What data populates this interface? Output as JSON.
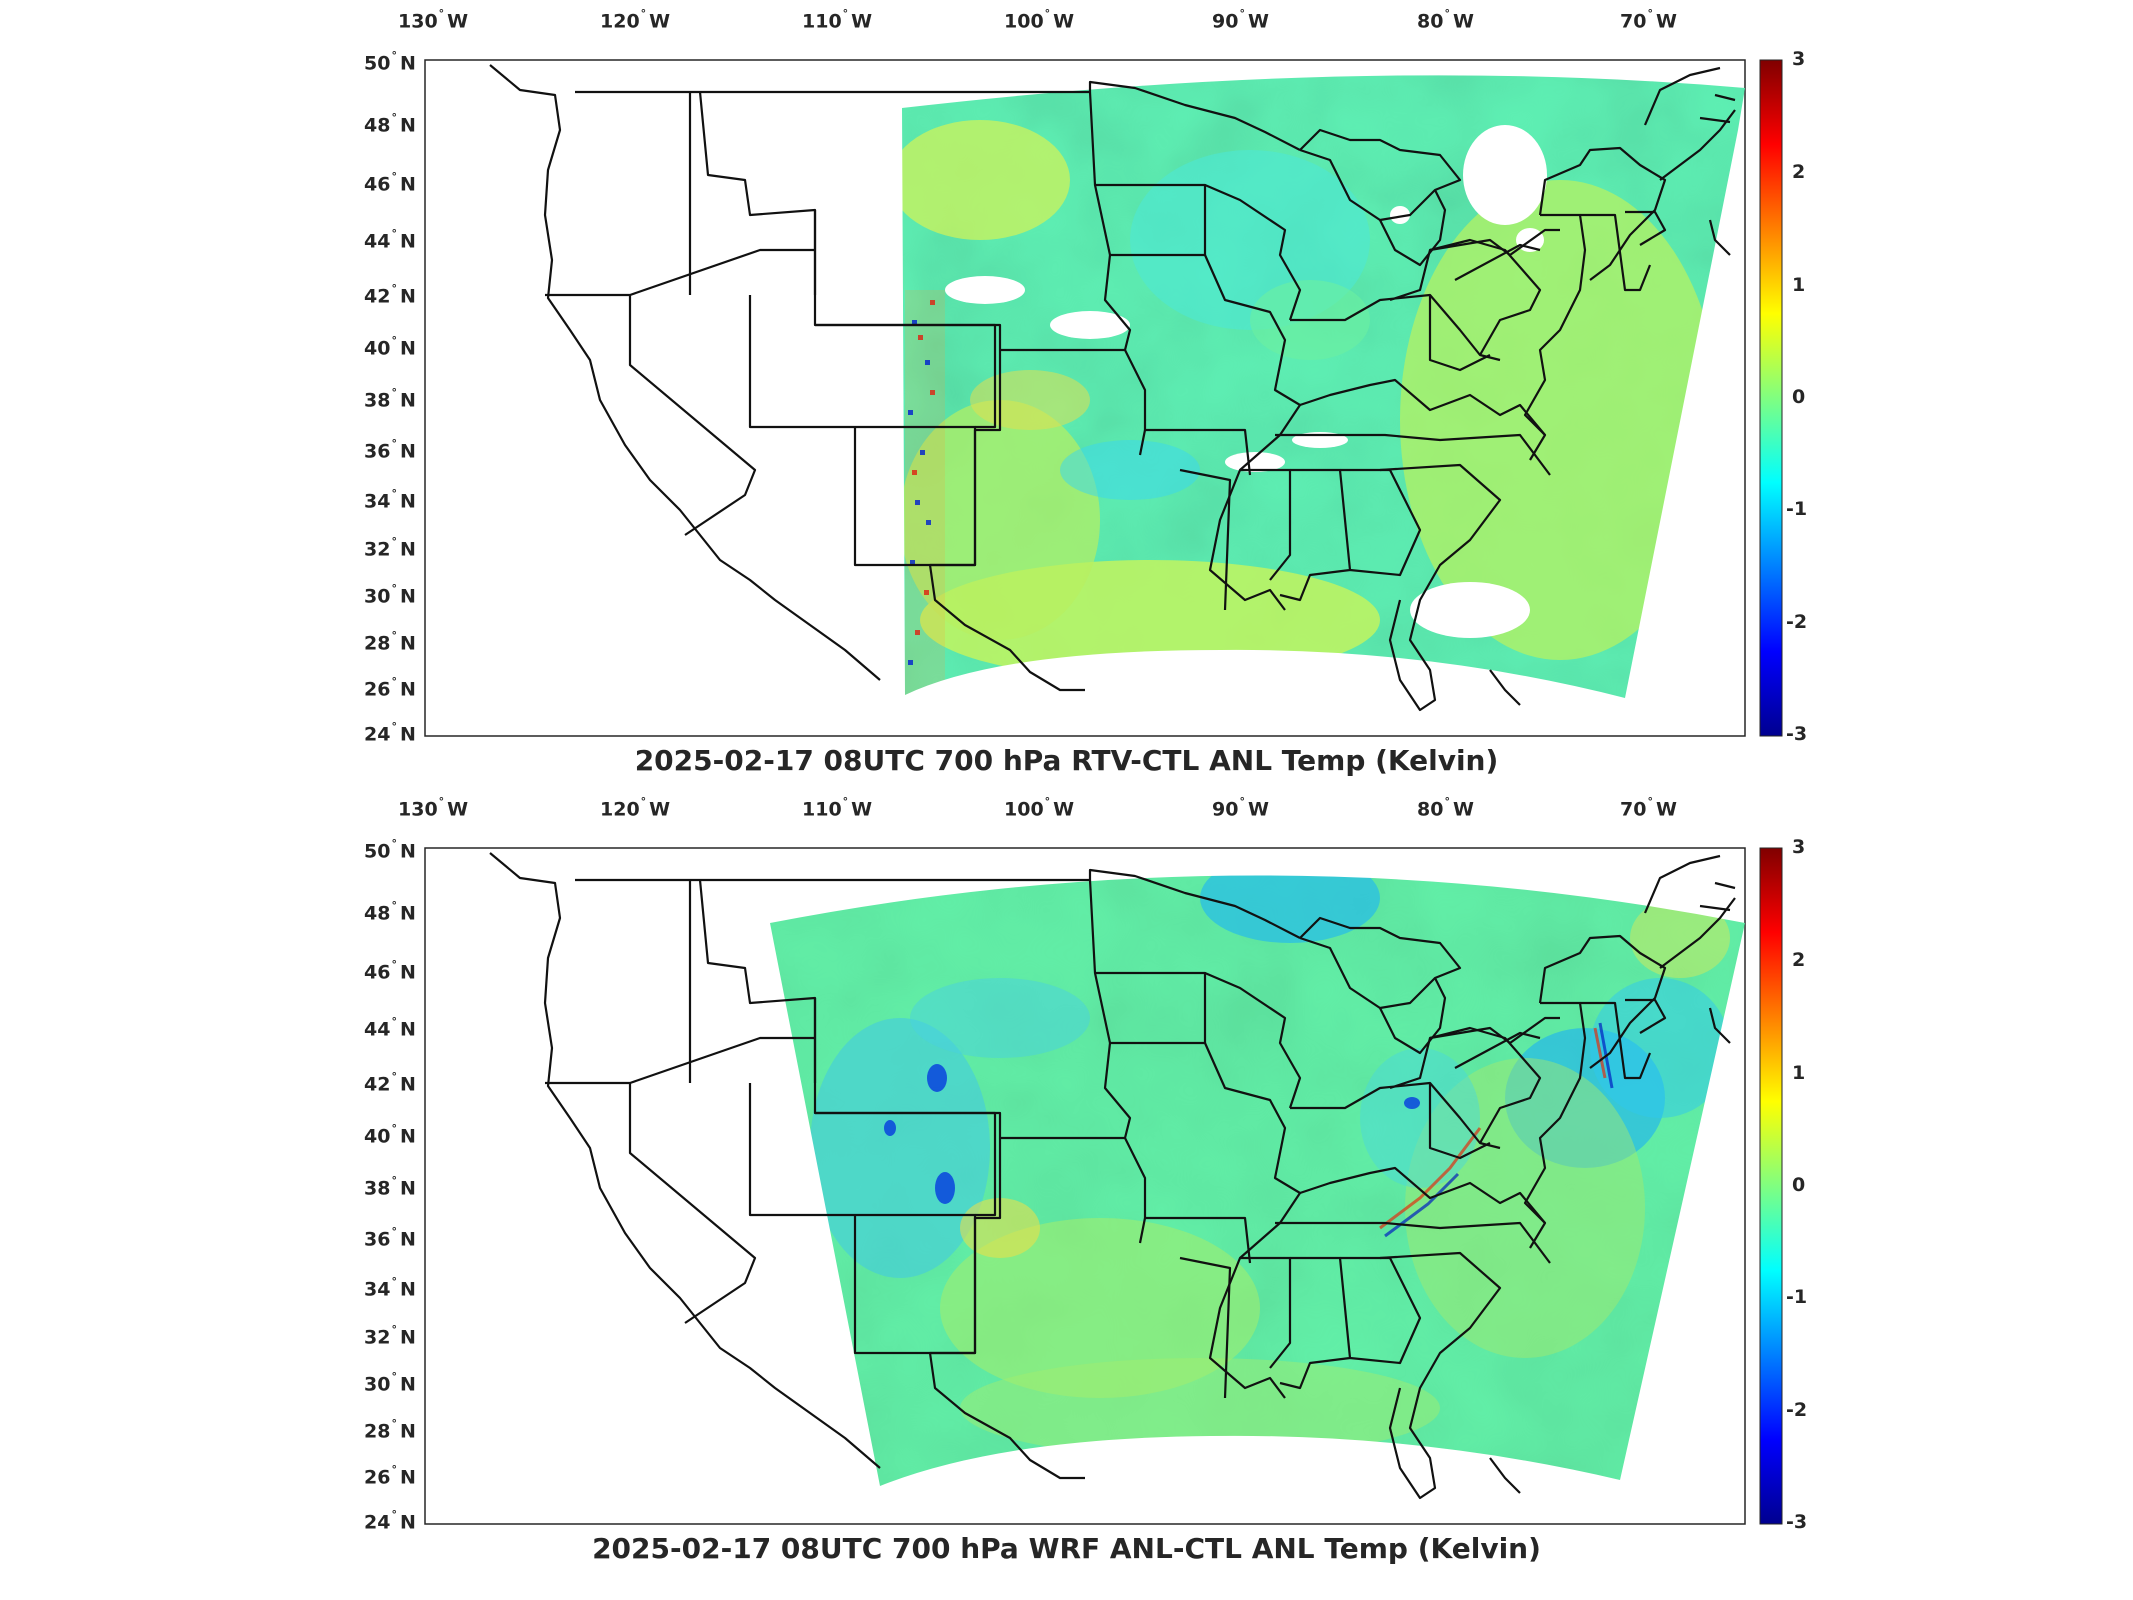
{
  "panels": [
    {
      "title": "2025-02-17 08UTC 700 hPa RTV-CTL ANL Temp (Kelvin)",
      "lon_labels": [
        "130",
        "120",
        "110",
        "100",
        "90",
        "80",
        "70"
      ],
      "lon_hemisphere": "W",
      "lat_labels": [
        "50",
        "48",
        "46",
        "44",
        "42",
        "40",
        "38",
        "36",
        "34",
        "32",
        "30",
        "28",
        "26",
        "24"
      ],
      "lat_hemisphere": "N",
      "colorbar_ticks": [
        "3",
        "2",
        "1",
        "0",
        "-1",
        "-2",
        "-3"
      ]
    },
    {
      "title": "2025-02-17 08UTC 700 hPa WRF ANL-CTL ANL Temp (Kelvin)",
      "lon_labels": [
        "130",
        "120",
        "110",
        "100",
        "90",
        "80",
        "70"
      ],
      "lon_hemisphere": "W",
      "lat_labels": [
        "50",
        "48",
        "46",
        "44",
        "42",
        "40",
        "38",
        "36",
        "34",
        "32",
        "30",
        "28",
        "26",
        "24"
      ],
      "lat_hemisphere": "N",
      "colorbar_ticks": [
        "3",
        "2",
        "1",
        "0",
        "-1",
        "-2",
        "-3"
      ]
    }
  ],
  "colormap": [
    "#00008f",
    "#0000ff",
    "#0080ff",
    "#00ffff",
    "#80ff80",
    "#ffff00",
    "#ff8000",
    "#ff0000",
    "#800000"
  ],
  "colorbar_range": [
    -3,
    3
  ],
  "projection": "Lambert conformal conic",
  "field_extent": {
    "top_panel": {
      "lon_west": -107.5,
      "lon_east": -64.5,
      "lat_south": 25.5,
      "lat_north": 49.5
    },
    "bottom_panel": {
      "lon_west": -113.5,
      "lon_east": -64.5,
      "lat_south": 25.5,
      "lat_north": 50
    }
  }
}
